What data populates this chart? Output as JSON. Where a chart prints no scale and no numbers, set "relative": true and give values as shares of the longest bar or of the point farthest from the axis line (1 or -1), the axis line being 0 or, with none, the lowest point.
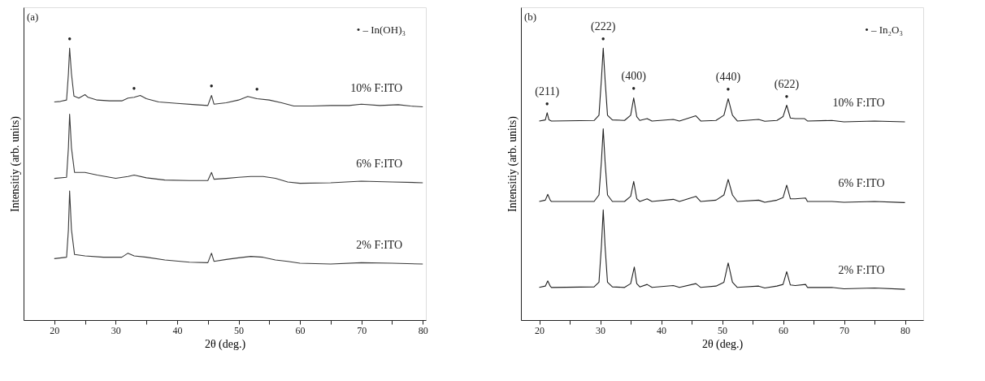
{
  "chart_data": [
    {
      "type": "line",
      "relative": true,
      "xlabel": "2θ (deg.)",
      "ylabel": "Intensitiy (arb. units)",
      "xlim": [
        15,
        80.5
      ],
      "xticks": [
        20,
        {
          "value": 25,
          "label": null
        },
        30,
        {
          "value": 35,
          "label": null
        },
        40,
        {
          "value": 45,
          "label": null
        },
        50,
        {
          "value": 55,
          "label": null
        },
        60,
        {
          "value": 65,
          "label": null
        },
        70,
        {
          "value": 75,
          "label": null
        },
        80
      ],
      "grid": false,
      "tick_labels": "x",
      "series": [
        {
          "name": "10% F:ITO",
          "color": "#3a3a3a",
          "x": [
            20,
            21,
            22,
            22.3,
            22.5,
            22.8,
            23.2,
            24,
            25,
            25.5,
            27,
            29,
            31,
            32,
            33,
            34,
            35,
            37,
            40,
            43,
            45,
            45.6,
            46,
            48,
            50,
            51.5,
            53,
            55,
            57,
            59,
            62,
            65,
            68,
            70,
            73,
            76,
            78,
            80
          ],
          "values": [
            0.802,
            0.804,
            0.809,
            0.905,
            1,
            0.905,
            0.824,
            0.816,
            0.829,
            0.819,
            0.809,
            0.806,
            0.806,
            0.816,
            0.819,
            0.826,
            0.814,
            0.802,
            0.797,
            0.792,
            0.789,
            0.826,
            0.794,
            0.799,
            0.809,
            0.822,
            0.814,
            0.809,
            0.799,
            0.787,
            0.787,
            0.789,
            0.789,
            0.794,
            0.789,
            0.792,
            0.787,
            0.784
          ]
        },
        {
          "name": "6% F:ITO",
          "color": "#3a3a3a",
          "x": [
            20,
            22,
            22.3,
            22.5,
            22.8,
            23.3,
            25,
            27,
            30,
            32,
            33,
            35,
            38,
            42,
            45,
            45.6,
            46,
            48,
            50,
            52,
            54,
            56,
            58,
            60,
            65,
            70,
            75,
            80
          ],
          "values": [
            0.521,
            0.525,
            0.633,
            0.757,
            0.633,
            0.543,
            0.543,
            0.533,
            0.521,
            0.528,
            0.533,
            0.523,
            0.515,
            0.513,
            0.513,
            0.543,
            0.518,
            0.521,
            0.525,
            0.528,
            0.528,
            0.521,
            0.508,
            0.503,
            0.505,
            0.511,
            0.508,
            0.505
          ]
        },
        {
          "name": "2% F:ITO",
          "color": "#3a3a3a",
          "x": [
            20,
            22,
            22.3,
            22.5,
            22.8,
            23.3,
            25,
            28,
            31,
            32,
            33,
            35,
            38,
            42,
            45,
            45.6,
            46,
            48,
            50,
            52,
            54,
            56,
            58,
            60,
            65,
            70,
            75,
            80
          ],
          "values": [
            0.226,
            0.231,
            0.332,
            0.475,
            0.332,
            0.241,
            0.236,
            0.231,
            0.231,
            0.246,
            0.236,
            0.231,
            0.221,
            0.213,
            0.211,
            0.246,
            0.216,
            0.223,
            0.229,
            0.234,
            0.231,
            0.221,
            0.216,
            0.209,
            0.206,
            0.211,
            0.209,
            0.206
          ]
        }
      ],
      "annotations": [
        "(a)",
        "• – In(OH)₃",
        {
          "text": "•",
          "x": 22.5,
          "y": 1
        },
        {
          "text": "•",
          "x": 33,
          "y": 0.819
        },
        {
          "text": "•",
          "x": 45.6,
          "y": 0.826
        },
        {
          "text": "•",
          "x": 53,
          "y": 0.814
        }
      ]
    },
    {
      "type": "line",
      "relative": true,
      "xlabel": "2θ (deg.)",
      "ylabel": "Intensitiy (arb. units)",
      "xlim": [
        17,
        83
      ],
      "xticks": [
        20,
        {
          "value": 25,
          "label": null
        },
        30,
        {
          "value": 35,
          "label": null
        },
        40,
        {
          "value": 45,
          "label": null
        },
        50,
        {
          "value": 55,
          "label": null
        },
        60,
        {
          "value": 65,
          "label": null
        },
        70,
        {
          "value": 75,
          "label": null
        },
        80
      ],
      "grid": false,
      "tick_labels": "x",
      "series": [
        {
          "name": "10% F:ITO",
          "color": "#222222",
          "x": [
            20,
            21,
            21.3,
            21.6,
            22,
            29,
            29.8,
            30.2,
            30.5,
            30.8,
            31.2,
            32,
            34,
            35,
            35.5,
            36,
            36.5,
            37.7,
            38.5,
            42,
            43,
            45.7,
            46.5,
            49,
            50.3,
            51,
            51.7,
            52.5,
            56,
            57,
            59,
            60,
            60.6,
            61.2,
            62,
            63.5,
            64,
            68,
            70,
            75,
            80
          ],
          "values": [
            0.732,
            0.736,
            0.762,
            0.736,
            0.732,
            0.734,
            0.753,
            0.885,
            1,
            0.885,
            0.753,
            0.736,
            0.734,
            0.753,
            0.817,
            0.748,
            0.734,
            0.741,
            0.732,
            0.738,
            0.732,
            0.751,
            0.732,
            0.734,
            0.753,
            0.814,
            0.753,
            0.732,
            0.738,
            0.731,
            0.734,
            0.748,
            0.79,
            0.743,
            0.741,
            0.741,
            0.732,
            0.734,
            0.729,
            0.732,
            0.729
          ]
        },
        {
          "name": "6% F:ITO",
          "color": "#222222",
          "x": [
            20,
            21,
            21.4,
            21.8,
            22,
            29,
            29.8,
            30.2,
            30.5,
            30.8,
            31.2,
            32,
            34,
            35,
            35.5,
            36,
            36.5,
            37.7,
            38.5,
            42,
            43,
            45.7,
            46.5,
            49,
            50.3,
            51,
            51.7,
            52.5,
            56,
            57,
            59,
            60,
            60.6,
            61.2,
            62,
            63.7,
            64,
            68,
            70,
            75,
            80
          ],
          "values": [
            0.436,
            0.441,
            0.462,
            0.441,
            0.436,
            0.436,
            0.46,
            0.583,
            0.703,
            0.583,
            0.46,
            0.436,
            0.436,
            0.455,
            0.51,
            0.446,
            0.436,
            0.446,
            0.436,
            0.444,
            0.436,
            0.455,
            0.436,
            0.441,
            0.46,
            0.517,
            0.46,
            0.436,
            0.441,
            0.433,
            0.441,
            0.45,
            0.496,
            0.446,
            0.446,
            0.449,
            0.436,
            0.436,
            0.433,
            0.436,
            0.432
          ]
        },
        {
          "name": "2% F:ITO",
          "color": "#222222",
          "x": [
            20,
            21,
            21.4,
            21.8,
            22,
            29,
            29.8,
            30.2,
            30.5,
            30.8,
            31.2,
            32,
            34,
            35,
            35.6,
            36,
            36.5,
            37.7,
            38.5,
            42,
            43,
            45.7,
            46.5,
            49,
            50.3,
            51,
            51.7,
            52.5,
            56,
            57,
            59,
            60,
            60.6,
            61.2,
            62,
            63.7,
            64,
            68,
            70,
            75,
            80
          ],
          "values": [
            0.12,
            0.125,
            0.144,
            0.125,
            0.12,
            0.122,
            0.139,
            0.271,
            0.405,
            0.271,
            0.139,
            0.122,
            0.12,
            0.134,
            0.195,
            0.134,
            0.122,
            0.131,
            0.12,
            0.127,
            0.12,
            0.134,
            0.12,
            0.125,
            0.139,
            0.21,
            0.139,
            0.12,
            0.125,
            0.118,
            0.125,
            0.131,
            0.178,
            0.129,
            0.127,
            0.131,
            0.12,
            0.12,
            0.115,
            0.118,
            0.113
          ]
        }
      ],
      "annotations": [
        "(b)",
        "• – In₂O₃",
        {
          "text": "•",
          "x": 21.3,
          "y": 0.762
        },
        {
          "text": "•",
          "x": 30.5,
          "y": 1
        },
        {
          "text": "•",
          "x": 35.5,
          "y": 0.817
        },
        {
          "text": "•",
          "x": 51,
          "y": 0.814
        },
        {
          "text": "•",
          "x": 60.6,
          "y": 0.79
        },
        {
          "text": "(211)",
          "x": 21.3,
          "y": 0.762
        },
        {
          "text": "(222)",
          "x": 30.5,
          "y": 1
        },
        {
          "text": "(400)",
          "x": 35.5,
          "y": 0.817
        },
        {
          "text": "(440)",
          "x": 51,
          "y": 0.814
        },
        {
          "text": "(622)",
          "x": 60.6,
          "y": 0.79
        }
      ]
    }
  ]
}
